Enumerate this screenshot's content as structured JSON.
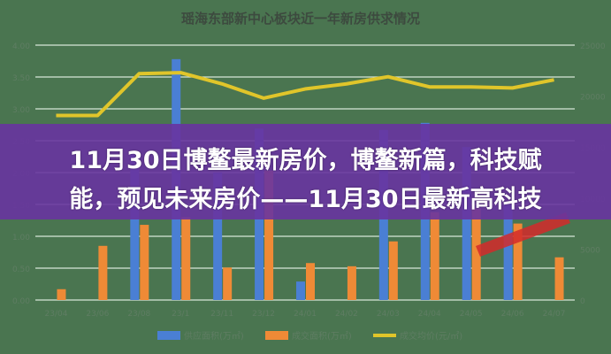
{
  "headline": {
    "line1": "11月30日博鳌最新房价，博鳌新篇，科技赋",
    "line2": "能，预见未来房价——11月30日最新高科技"
  },
  "colors": {
    "background": "#4a7550",
    "overlay": "#6834a0",
    "supply": "#4a7fd4",
    "deal": "#ef8a36",
    "price": "#e0c52a",
    "grid": "#d8e8d8"
  },
  "chart_data": {
    "type": "bar+line",
    "title": "瑶海东部新中心板块近一年新房供求情况",
    "categories": [
      "23/04",
      "23/06",
      "23/08",
      "23/1",
      "23/11",
      "23/12",
      "24/01",
      "24/02",
      "24/03",
      "24/04",
      "24/05",
      "24/06",
      "24/07"
    ],
    "left_axis": {
      "ylim": [
        0,
        4
      ],
      "ticks": [
        "0.00",
        "0.50",
        "1.00",
        "1.50",
        "2.00",
        "2.50",
        "3.00",
        "3.50",
        "4.00"
      ]
    },
    "right_axis": {
      "ylim": [
        0,
        25000
      ],
      "ticks": [
        "0",
        "5000",
        "10000",
        "15000",
        "20000",
        "25000"
      ]
    },
    "grid": true,
    "legend_position": "bottom",
    "series": [
      {
        "name": "供应面积(万㎡)",
        "type": "bar",
        "axis": "left",
        "values": [
          0,
          0,
          2.3,
          3.78,
          2.0,
          2.69,
          0.29,
          0,
          2.67,
          2.78,
          2.4,
          1.5,
          0
        ]
      },
      {
        "name": "成交面积(万㎡)",
        "type": "bar",
        "axis": "left",
        "values": [
          0.17,
          0.85,
          1.18,
          1.3,
          0.51,
          2.03,
          0.58,
          0.53,
          0.92,
          1.38,
          1.44,
          1.2,
          0.67
        ]
      },
      {
        "name": "成交均价(元/㎡)",
        "type": "line",
        "axis": "right",
        "values": [
          18100,
          18100,
          22200,
          22300,
          21200,
          19800,
          20700,
          21200,
          21900,
          20900,
          20900,
          20800,
          21600
        ]
      }
    ]
  }
}
